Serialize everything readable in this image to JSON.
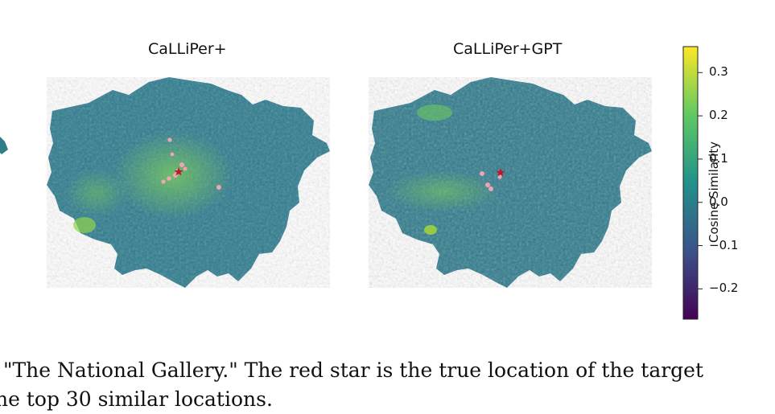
{
  "panels": [
    {
      "title": "CaLLiPer+"
    },
    {
      "title": "CaLLiPer+GPT"
    }
  ],
  "colorbar": {
    "label": "Cosine Similarity",
    "ticks": [
      "0.3",
      "0.2",
      "0.1",
      "0.0",
      "−0.1",
      "−0.2"
    ],
    "tick_values": [
      0.3,
      0.2,
      0.1,
      0.0,
      -0.1,
      -0.2
    ],
    "range": [
      -0.27,
      0.36
    ],
    "colormap_stops": [
      "#440154",
      "#3b528b",
      "#21918c",
      "#5ec962",
      "#fde725"
    ]
  },
  "caption": {
    "line1": "\"The National Gallery.\" The red star is the true location of the target",
    "line2": "he top 30 similar locations."
  },
  "colors": {
    "map_base": "#2a7b8e",
    "highlight": "#f2a3b4",
    "true_location_star": "#c0152a"
  }
}
